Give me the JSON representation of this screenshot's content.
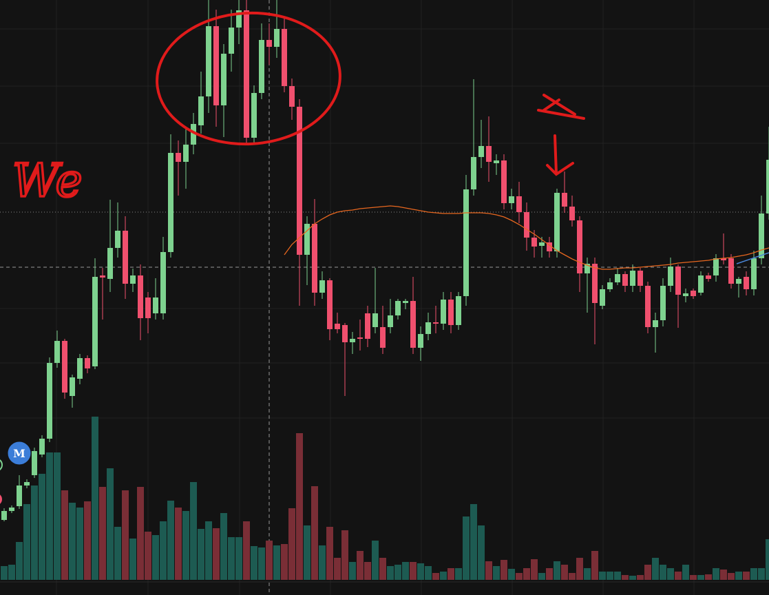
{
  "chart_data": {
    "type": "candlestick",
    "up_color": "#7ed28f",
    "down_color": "#f0506e",
    "volume_up_color": "#1d5b52",
    "volume_down_color": "#7a2e36",
    "ylim": [
      0,
      864
    ],
    "vlim": [
      0,
      260
    ],
    "open": [
      109,
      122,
      129,
      159,
      174,
      204,
      227,
      337,
      369,
      289,
      314,
      344,
      332,
      464,
      459,
      504,
      529,
      452,
      464,
      432,
      409,
      409,
      498,
      642,
      629,
      654,
      682,
      724,
      826,
      711,
      786,
      824,
      849,
      664,
      729,
      806,
      796,
      822,
      739,
      709,
      494,
      539,
      439,
      457,
      394,
      392,
      367,
      374,
      409,
      389,
      389,
      389,
      406,
      424,
      427,
      359,
      379,
      396,
      394,
      429,
      392,
      434,
      589,
      636,
      652,
      627,
      631,
      569,
      579,
      556,
      519,
      507,
      512,
      499,
      584,
      564,
      544,
      467,
      481,
      420,
      444,
      454,
      466,
      449,
      471,
      449,
      389,
      399,
      449,
      477,
      434,
      442,
      439,
      464,
      464,
      489,
      489,
      452,
      462,
      444,
      489,
      554
    ],
    "high": [
      126,
      130,
      174,
      168,
      214,
      232,
      345,
      384,
      372,
      320,
      350,
      348,
      489,
      475,
      574,
      570,
      550,
      474,
      480,
      440,
      460,
      520,
      669,
      660,
      680,
      700,
      760,
      864,
      850,
      800,
      850,
      864,
      864,
      740,
      830,
      830,
      864,
      840,
      750,
      720,
      550,
      575,
      470,
      460,
      410,
      395,
      382,
      400,
      420,
      475,
      420,
      430,
      430,
      430,
      462,
      390,
      410,
      420,
      440,
      440,
      440,
      610,
      749,
      690,
      695,
      640,
      640,
      590,
      600,
      570,
      530,
      520,
      520,
      590,
      615,
      580,
      550,
      490,
      490,
      450,
      460,
      475,
      470,
      480,
      475,
      455,
      410,
      460,
      490,
      480,
      445,
      445,
      470,
      468,
      495,
      525,
      495,
      462,
      470,
      500,
      580,
      680
    ],
    "low": [
      107,
      119,
      125,
      155,
      170,
      200,
      222,
      330,
      285,
      272,
      306,
      322,
      328,
      400,
      440,
      490,
      430,
      440,
      370,
      380,
      400,
      400,
      490,
      580,
      590,
      640,
      670,
      700,
      680,
      665,
      760,
      800,
      654,
      654,
      720,
      770,
      780,
      730,
      690,
      420,
      450,
      420,
      430,
      370,
      380,
      289,
      350,
      355,
      360,
      380,
      350,
      380,
      400,
      415,
      350,
      340,
      370,
      380,
      385,
      380,
      385,
      420,
      580,
      620,
      600,
      610,
      560,
      560,
      540,
      500,
      490,
      490,
      490,
      490,
      555,
      535,
      440,
      410,
      364,
      415,
      440,
      450,
      440,
      440,
      440,
      380,
      352,
      390,
      440,
      388,
      425,
      430,
      435,
      455,
      455,
      480,
      445,
      432,
      435,
      435,
      480,
      545
    ],
    "close": [
      122,
      127,
      159,
      164,
      209,
      227,
      337,
      369,
      294,
      316,
      344,
      329,
      462,
      461,
      504,
      529,
      452,
      464,
      402,
      402,
      432,
      498,
      642,
      629,
      654,
      684,
      724,
      826,
      711,
      786,
      824,
      849,
      664,
      729,
      806,
      796,
      822,
      739,
      709,
      494,
      539,
      439,
      457,
      386,
      386,
      367,
      372,
      372,
      372,
      409,
      359,
      406,
      427,
      427,
      359,
      379,
      396,
      394,
      429,
      392,
      434,
      589,
      636,
      652,
      629,
      631,
      569,
      579,
      556,
      519,
      506,
      512,
      499,
      584,
      564,
      544,
      467,
      481,
      424,
      444,
      454,
      466,
      449,
      471,
      449,
      389,
      399,
      449,
      477,
      436,
      438,
      434,
      464,
      459,
      489,
      486,
      452,
      459,
      444,
      489,
      554,
      632
    ],
    "volume": [
      20,
      22,
      55,
      110,
      137,
      154,
      185,
      185,
      130,
      112,
      105,
      114,
      237,
      135,
      162,
      77,
      130,
      60,
      135,
      70,
      65,
      85,
      115,
      105,
      100,
      142,
      74,
      85,
      75,
      97,
      62,
      62,
      85,
      49,
      47,
      57,
      50,
      52,
      104,
      213,
      79,
      136,
      50,
      77,
      32,
      72,
      26,
      42,
      26,
      57,
      32,
      20,
      22,
      26,
      26,
      24,
      20,
      10,
      12,
      17,
      17,
      92,
      110,
      79,
      27,
      20,
      29,
      16,
      10,
      17,
      30,
      10,
      17,
      27,
      22,
      10,
      32,
      17,
      42,
      12,
      12,
      12,
      7,
      6,
      7,
      22,
      32,
      22,
      17,
      12,
      22,
      7,
      7,
      8,
      17,
      15,
      10,
      12,
      12,
      17,
      17,
      59
    ],
    "ma": {
      "color": "#e8671f",
      "values": [
        null,
        null,
        null,
        null,
        null,
        null,
        null,
        null,
        null,
        null,
        null,
        null,
        null,
        null,
        null,
        null,
        null,
        null,
        null,
        null,
        null,
        null,
        null,
        null,
        null,
        null,
        null,
        null,
        null,
        null,
        null,
        null,
        null,
        null,
        null,
        null,
        null,
        494,
        509,
        519,
        529,
        539,
        546,
        552,
        556,
        558,
        559,
        561,
        562,
        563,
        564,
        565,
        564,
        562,
        560,
        558,
        556,
        555,
        554,
        554,
        554,
        555,
        555,
        555,
        554,
        552,
        549,
        544,
        538,
        531,
        524,
        516,
        508,
        500,
        494,
        488,
        483,
        479,
        475,
        473,
        473,
        474,
        475,
        475,
        476,
        477,
        478,
        479,
        480,
        482,
        483,
        484,
        485,
        486,
        488,
        489,
        490,
        492,
        494,
        497,
        501,
        504
      ]
    }
  },
  "badge": "M",
  "annotation": "We"
}
